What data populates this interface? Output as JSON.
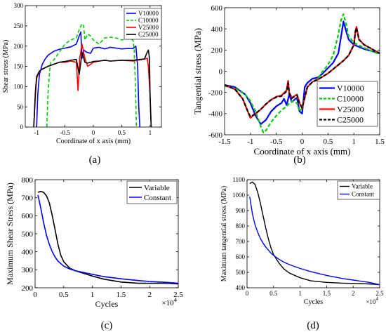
{
  "chart_data": [
    {
      "id": "a",
      "panel_label": "(a)",
      "type": "line",
      "xlabel": "Coordinate of x axis (mm)",
      "ylabel": "Shear stress (MPa)",
      "xlim": [
        -1.2,
        1.2
      ],
      "ylim": [
        0,
        300
      ],
      "xticks": [
        -1,
        -0.5,
        0,
        0.5,
        1
      ],
      "xtick_labels": [
        "-1",
        "-0.5",
        "0",
        "0.5",
        "1"
      ],
      "yticks": [
        0,
        50,
        100,
        150,
        200,
        250,
        300
      ],
      "ytick_labels": [
        "0",
        "50",
        "100",
        "150",
        "200",
        "250",
        "300"
      ],
      "grid": false,
      "legend_position": "top-right",
      "series": [
        {
          "name": "V10000",
          "color": "#0000ff",
          "dash": "solid",
          "x": [
            -1.0,
            -0.98,
            -0.95,
            -0.9,
            -0.85,
            -0.8,
            -0.7,
            -0.6,
            -0.5,
            -0.4,
            -0.3,
            -0.25,
            -0.22,
            -0.2,
            -0.17,
            -0.12,
            -0.05,
            0.0,
            0.1,
            0.2,
            0.3,
            0.4,
            0.5,
            0.6,
            0.7,
            0.75,
            0.78,
            0.8,
            0.82
          ],
          "y": [
            0,
            80,
            130,
            155,
            168,
            177,
            187,
            192,
            195,
            198,
            205,
            225,
            235,
            170,
            190,
            185,
            182,
            195,
            197,
            193,
            197,
            195,
            193,
            194,
            194,
            200,
            150,
            50,
            0
          ]
        },
        {
          "name": "C10000",
          "color": "#00cc00",
          "dash": "dashed",
          "x": [
            -0.82,
            -0.8,
            -0.77,
            -0.75,
            -0.7,
            -0.6,
            -0.5,
            -0.4,
            -0.3,
            -0.25,
            -0.2,
            -0.17,
            -0.15,
            -0.1,
            -0.05,
            0.0,
            0.1,
            0.2,
            0.3,
            0.4,
            0.5,
            0.6,
            0.7,
            0.72,
            0.74,
            0.76
          ],
          "y": [
            0,
            80,
            140,
            160,
            165,
            185,
            205,
            215,
            220,
            240,
            255,
            250,
            215,
            230,
            225,
            215,
            205,
            220,
            222,
            220,
            215,
            218,
            215,
            190,
            110,
            0
          ]
        },
        {
          "name": "V25000",
          "color": "#ff0000",
          "dash": "solid",
          "x": [
            -1.05,
            -1.02,
            -1.0,
            -0.95,
            -0.9,
            -0.8,
            -0.7,
            -0.6,
            -0.5,
            -0.4,
            -0.3,
            -0.27,
            -0.24,
            -0.2,
            -0.15,
            -0.1,
            -0.05,
            0.0,
            0.1,
            0.2,
            0.3,
            0.5,
            0.7,
            0.9,
            0.95,
            0.97,
            1.0,
            1.02
          ],
          "y": [
            0,
            80,
            120,
            138,
            143,
            150,
            155,
            160,
            160,
            163,
            160,
            90,
            170,
            205,
            170,
            150,
            155,
            160,
            163,
            165,
            163,
            165,
            163,
            168,
            170,
            150,
            80,
            0
          ]
        },
        {
          "name": "C25000",
          "color": "#000000",
          "dash": "solid",
          "x": [
            -1.05,
            -1.02,
            -1.0,
            -0.95,
            -0.9,
            -0.8,
            -0.7,
            -0.6,
            -0.5,
            -0.4,
            -0.3,
            -0.25,
            -0.22,
            -0.2,
            -0.15,
            -0.1,
            0.0,
            0.1,
            0.2,
            0.3,
            0.5,
            0.7,
            0.9,
            0.95,
            0.97,
            0.99,
            1.0,
            1.02
          ],
          "y": [
            0,
            90,
            125,
            138,
            143,
            150,
            155,
            160,
            162,
            165,
            167,
            130,
            160,
            185,
            160,
            158,
            162,
            163,
            165,
            163,
            165,
            165,
            168,
            185,
            190,
            170,
            80,
            0
          ]
        }
      ]
    },
    {
      "id": "b",
      "panel_label": "(b)",
      "type": "line",
      "xlabel": "Coordinate of x axis (mm)",
      "ylabel": "Tangential stress (MPa)",
      "xlim": [
        -1.5,
        1.5
      ],
      "ylim": [
        -600,
        600
      ],
      "xticks": [
        -1.5,
        -1,
        -0.5,
        0,
        0.5,
        1,
        1.5
      ],
      "xtick_labels": [
        "-1.5",
        "-1",
        "-0.5",
        "0",
        "0.5",
        "1",
        "1.5"
      ],
      "yticks": [
        -600,
        -400,
        -200,
        0,
        200,
        400,
        600
      ],
      "ytick_labels": [
        "-600",
        "-400",
        "-200",
        "0",
        "200",
        "400",
        "600"
      ],
      "grid": false,
      "legend_position": "bottom-right",
      "series": [
        {
          "name": "V10000",
          "color": "#0000ff",
          "dash": "solid",
          "x": [
            -1.5,
            -1.3,
            -1.1,
            -1.0,
            -0.9,
            -0.8,
            -0.7,
            -0.6,
            -0.5,
            -0.4,
            -0.35,
            -0.3,
            -0.25,
            -0.2,
            -0.1,
            -0.05,
            0.0,
            0.05,
            0.1,
            0.2,
            0.3,
            0.4,
            0.5,
            0.6,
            0.7,
            0.75,
            0.8,
            0.85,
            0.9,
            1.0,
            1.2,
            1.5
          ],
          "y": [
            -130,
            -150,
            -220,
            -300,
            -420,
            -500,
            -460,
            -380,
            -330,
            -300,
            -260,
            -320,
            -220,
            -290,
            -250,
            -380,
            -400,
            -150,
            -110,
            -70,
            -60,
            -20,
            30,
            80,
            170,
            320,
            470,
            380,
            300,
            250,
            210,
            170
          ]
        },
        {
          "name": "C10000",
          "color": "#00cc00",
          "dash": "dashed",
          "x": [
            -1.5,
            -1.3,
            -1.1,
            -1.0,
            -0.9,
            -0.8,
            -0.75,
            -0.7,
            -0.6,
            -0.5,
            -0.4,
            -0.3,
            -0.2,
            -0.1,
            -0.05,
            0.0,
            0.1,
            0.2,
            0.3,
            0.4,
            0.5,
            0.6,
            0.7,
            0.75,
            0.8,
            0.85,
            0.9,
            1.0,
            1.2,
            1.5
          ],
          "y": [
            -140,
            -160,
            -220,
            -280,
            -380,
            -520,
            -580,
            -560,
            -480,
            -420,
            -370,
            -330,
            -280,
            -300,
            -380,
            -350,
            -150,
            -100,
            -70,
            0,
            60,
            150,
            350,
            480,
            540,
            450,
            330,
            270,
            220,
            160
          ]
        },
        {
          "name": "V25000",
          "color": "#ff0000",
          "dash": "solid",
          "x": [
            -1.5,
            -1.3,
            -1.15,
            -1.05,
            -1.0,
            -0.9,
            -0.8,
            -0.7,
            -0.6,
            -0.5,
            -0.4,
            -0.3,
            -0.27,
            -0.25,
            -0.2,
            -0.1,
            -0.05,
            0.0,
            0.1,
            0.2,
            0.3,
            0.4,
            0.5,
            0.6,
            0.7,
            0.8,
            0.9,
            1.0,
            1.03,
            1.05,
            1.1,
            1.2,
            1.5
          ],
          "y": [
            -130,
            -170,
            -260,
            -380,
            -440,
            -400,
            -360,
            -310,
            -270,
            -240,
            -230,
            -180,
            -90,
            -200,
            -250,
            -220,
            -300,
            -350,
            -150,
            -100,
            -80,
            -50,
            -20,
            20,
            60,
            100,
            150,
            250,
            380,
            420,
            300,
            250,
            170
          ]
        },
        {
          "name": "C25000",
          "color": "#000000",
          "dash": "dashed",
          "x": [
            -1.5,
            -1.3,
            -1.15,
            -1.05,
            -1.0,
            -0.9,
            -0.8,
            -0.7,
            -0.6,
            -0.5,
            -0.4,
            -0.3,
            -0.27,
            -0.25,
            -0.2,
            -0.1,
            -0.05,
            0.0,
            0.1,
            0.2,
            0.3,
            0.4,
            0.5,
            0.6,
            0.7,
            0.8,
            0.9,
            1.0,
            1.03,
            1.05,
            1.1,
            1.2,
            1.5
          ],
          "y": [
            -130,
            -170,
            -260,
            -380,
            -430,
            -400,
            -360,
            -310,
            -270,
            -245,
            -235,
            -190,
            -110,
            -210,
            -255,
            -225,
            -300,
            -345,
            -150,
            -100,
            -80,
            -50,
            -20,
            20,
            60,
            100,
            150,
            250,
            370,
            410,
            300,
            250,
            170
          ]
        }
      ]
    },
    {
      "id": "c",
      "panel_label": "(c)",
      "type": "line",
      "xlabel": "Cycles",
      "ylabel": "Maximum Shear Stress (MPa)",
      "x_multiplier": "×10",
      "x_multiplier_exp": "4",
      "xlim": [
        0,
        2.5
      ],
      "ylim": [
        200,
        800
      ],
      "xticks": [
        0,
        0.5,
        1,
        1.5,
        2,
        2.5
      ],
      "xtick_labels": [
        "0",
        "0.5",
        "1",
        "1.5",
        "2",
        "2.5"
      ],
      "yticks": [
        200,
        300,
        400,
        500,
        600,
        700,
        800
      ],
      "ytick_labels": [
        "200",
        "300",
        "400",
        "500",
        "600",
        "700",
        "800"
      ],
      "grid": false,
      "legend_position": "top-right",
      "series": [
        {
          "name": "Variable",
          "color": "#000000",
          "dash": "solid",
          "x": [
            0.05,
            0.1,
            0.15,
            0.2,
            0.25,
            0.3,
            0.35,
            0.4,
            0.45,
            0.5,
            0.6,
            0.7,
            0.8,
            1.0,
            1.2,
            1.5,
            1.8,
            2.0,
            2.3,
            2.5
          ],
          "y": [
            730,
            735,
            730,
            710,
            670,
            600,
            520,
            440,
            380,
            345,
            310,
            295,
            285,
            265,
            248,
            232,
            225,
            225,
            225,
            222
          ]
        },
        {
          "name": "Constant",
          "color": "#0000ff",
          "dash": "solid",
          "x": [
            0.05,
            0.1,
            0.15,
            0.2,
            0.25,
            0.3,
            0.35,
            0.4,
            0.5,
            0.6,
            0.7,
            0.8,
            1.0,
            1.2,
            1.5,
            1.8,
            2.0,
            2.3,
            2.5
          ],
          "y": [
            715,
            640,
            560,
            490,
            440,
            400,
            370,
            348,
            320,
            305,
            295,
            288,
            275,
            262,
            250,
            240,
            235,
            230,
            225
          ]
        }
      ]
    },
    {
      "id": "d",
      "panel_label": "(d)",
      "type": "line",
      "xlabel": "Cycles",
      "ylabel": "Maximum tangential stress (MPa)",
      "x_multiplier": "×10",
      "x_multiplier_exp": "4",
      "xlim": [
        0,
        2.5
      ],
      "ylim": [
        400,
        1100
      ],
      "xticks": [
        0,
        0.5,
        1,
        1.5,
        2,
        2.5
      ],
      "xtick_labels": [
        "0",
        "0.5",
        "1",
        "1.5",
        "2",
        "2.5"
      ],
      "yticks": [
        400,
        500,
        600,
        700,
        800,
        900,
        1000,
        1100
      ],
      "ytick_labels": [
        "400",
        "500",
        "600",
        "700",
        "800",
        "900",
        "1000",
        "1100"
      ],
      "grid": false,
      "legend_position": "top-right",
      "series": [
        {
          "name": "Variable",
          "color": "#000000",
          "dash": "solid",
          "x": [
            0.05,
            0.1,
            0.15,
            0.2,
            0.25,
            0.3,
            0.35,
            0.4,
            0.45,
            0.5,
            0.6,
            0.7,
            0.8,
            1.0,
            1.2,
            1.5,
            1.8,
            2.0,
            2.3,
            2.5
          ],
          "y": [
            1075,
            1085,
            1070,
            1020,
            950,
            870,
            790,
            720,
            660,
            615,
            560,
            520,
            495,
            465,
            445,
            435,
            430,
            428,
            425,
            420
          ]
        },
        {
          "name": "Constant",
          "color": "#0000ff",
          "dash": "solid",
          "x": [
            0.05,
            0.1,
            0.15,
            0.2,
            0.25,
            0.3,
            0.35,
            0.4,
            0.45,
            0.5,
            0.6,
            0.7,
            0.8,
            1.0,
            1.2,
            1.5,
            1.8,
            2.0,
            2.3,
            2.5
          ],
          "y": [
            990,
            880,
            810,
            760,
            720,
            690,
            665,
            645,
            625,
            610,
            585,
            565,
            550,
            525,
            505,
            480,
            460,
            450,
            435,
            420
          ]
        }
      ]
    }
  ]
}
